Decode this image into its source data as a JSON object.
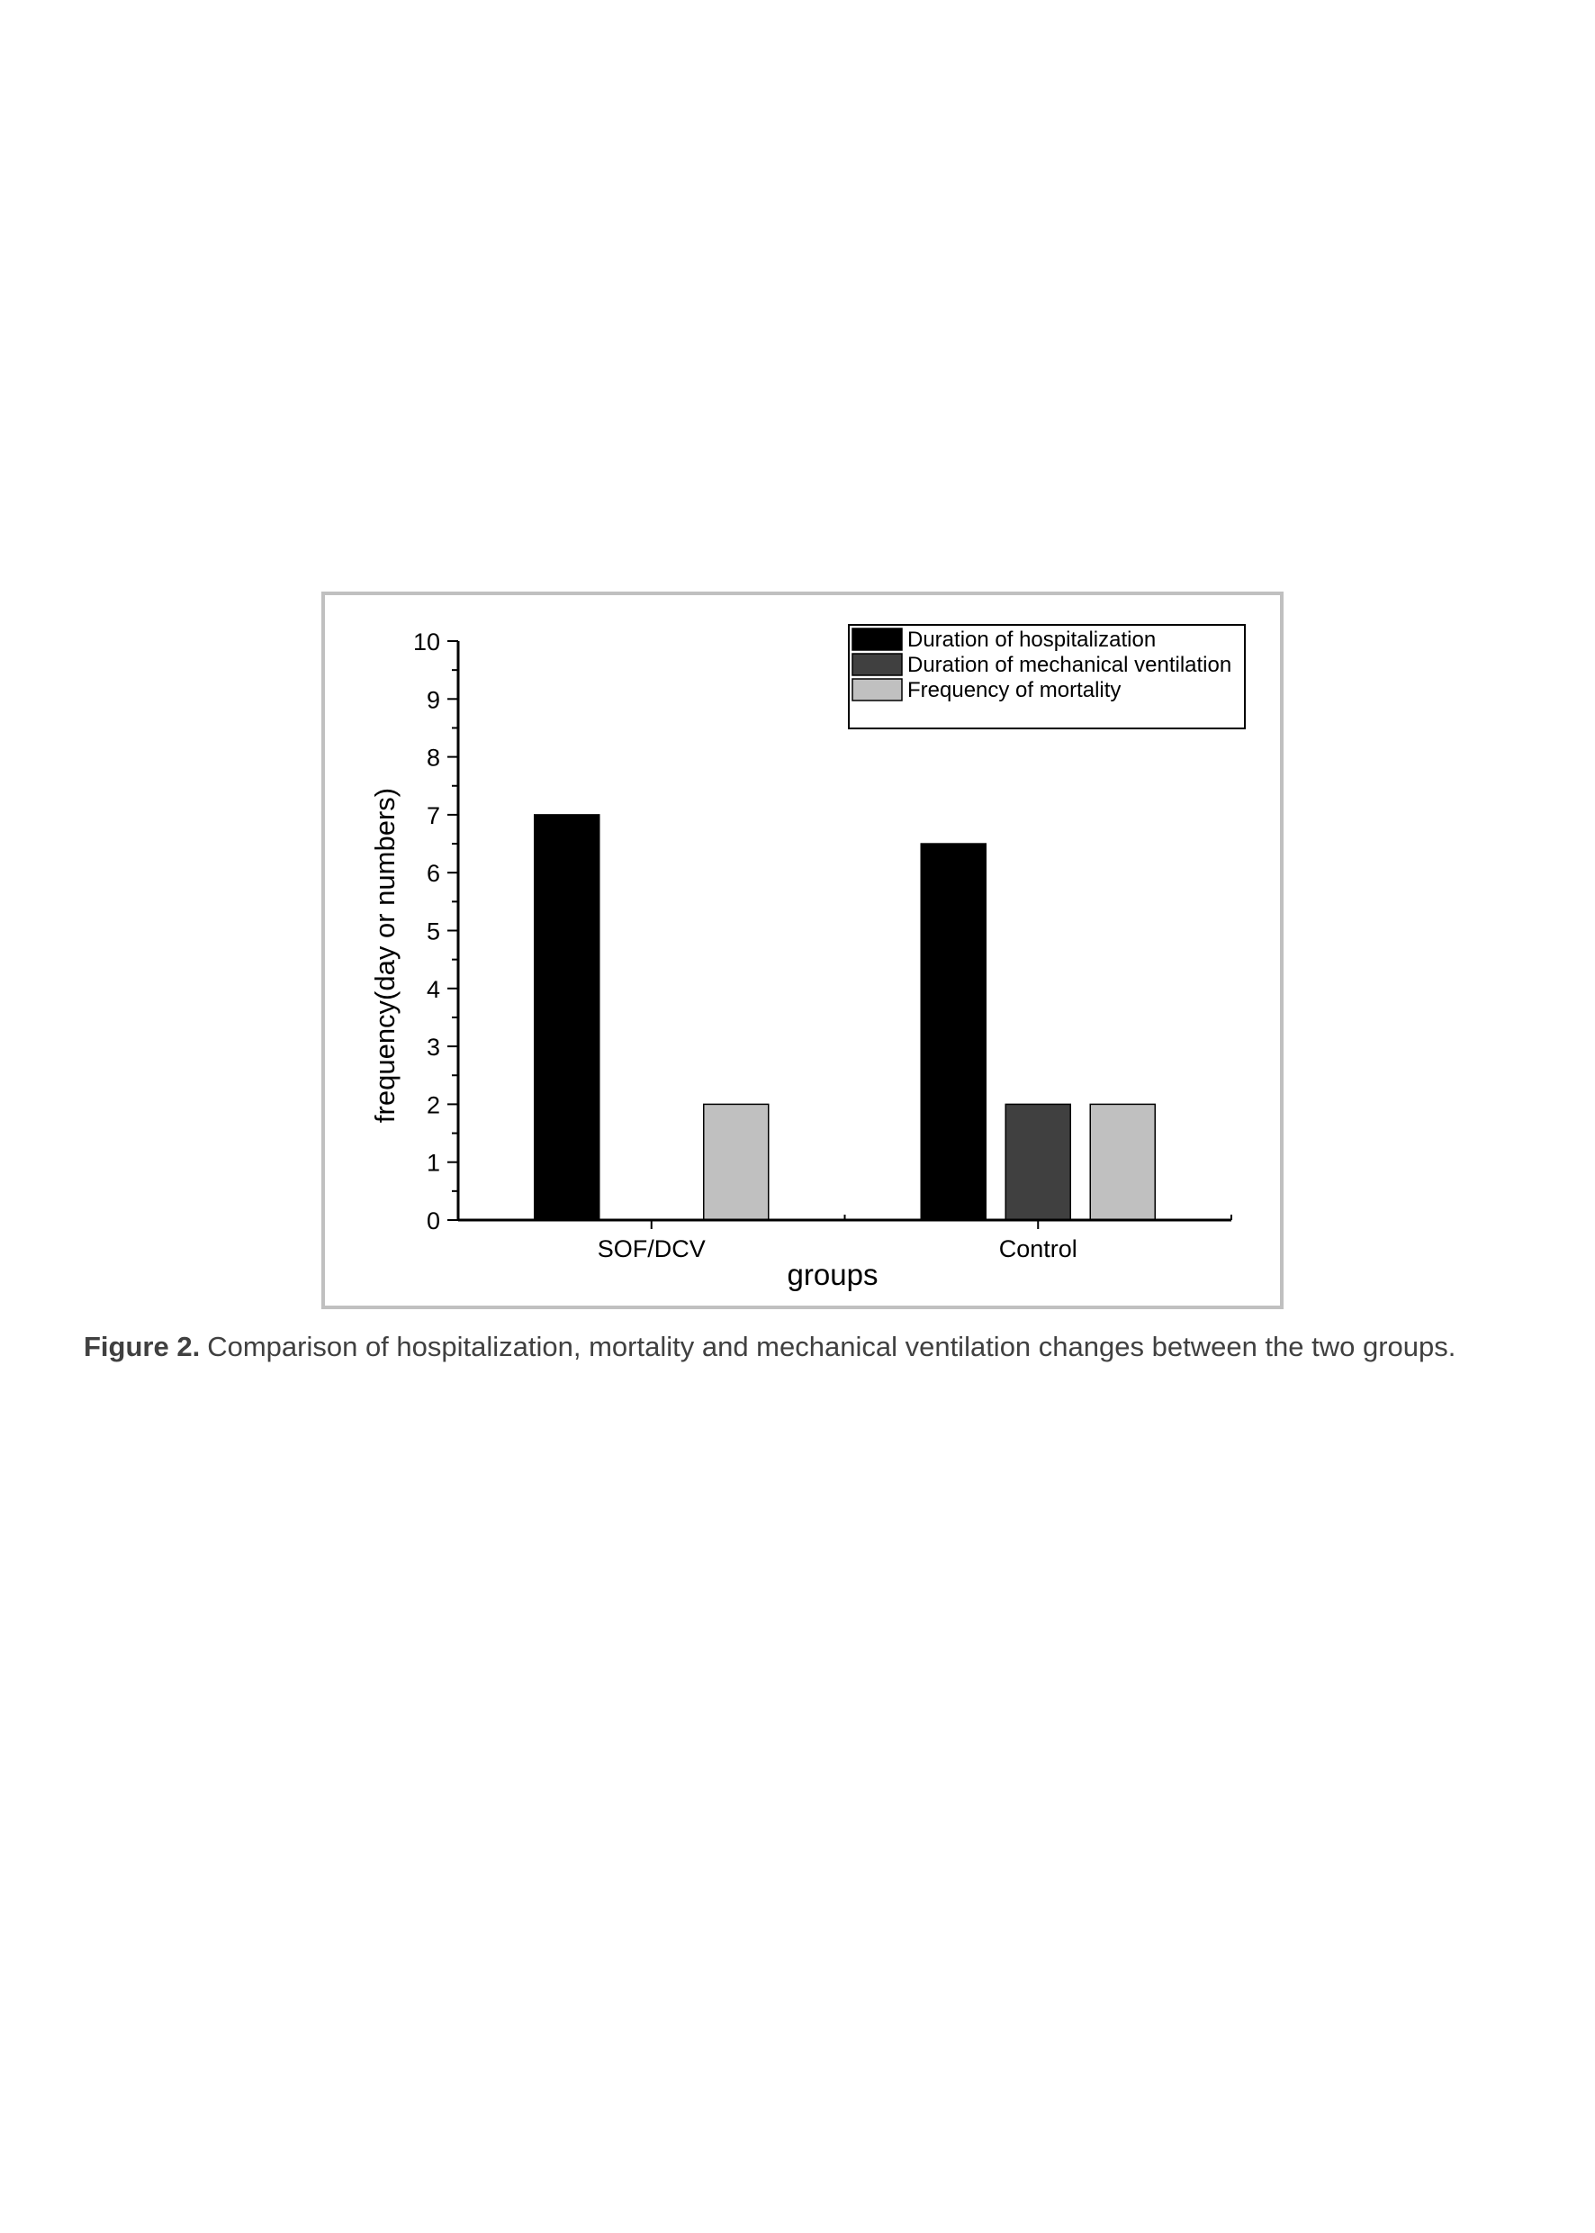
{
  "chart_data": {
    "type": "bar",
    "categories": [
      "SOF/DCV",
      "Control"
    ],
    "series": [
      {
        "name": "Duration of hospitalization",
        "values": [
          7,
          6.5
        ],
        "color": "#000000"
      },
      {
        "name": "Duration of mechanical ventilation",
        "values": [
          0,
          2
        ],
        "color": "#404040"
      },
      {
        "name": "Frequency of mortality",
        "values": [
          2,
          2
        ],
        "color": "#c0c0c0"
      }
    ],
    "title": "",
    "xlabel": "groups",
    "ylabel": "frequency(day or numbers)",
    "ylim": [
      0,
      10
    ],
    "yticks": [
      "0",
      "1",
      "2",
      "3",
      "4",
      "5",
      "6",
      "7",
      "8",
      "9",
      "10"
    ],
    "grid": false,
    "legend_position": "top-right",
    "bar_edge_color": "#000000"
  },
  "caption": {
    "label": "Figure 2.",
    "text": "Comparison of hospitalization, mortality and mechanical ventilation changes between the two groups."
  }
}
